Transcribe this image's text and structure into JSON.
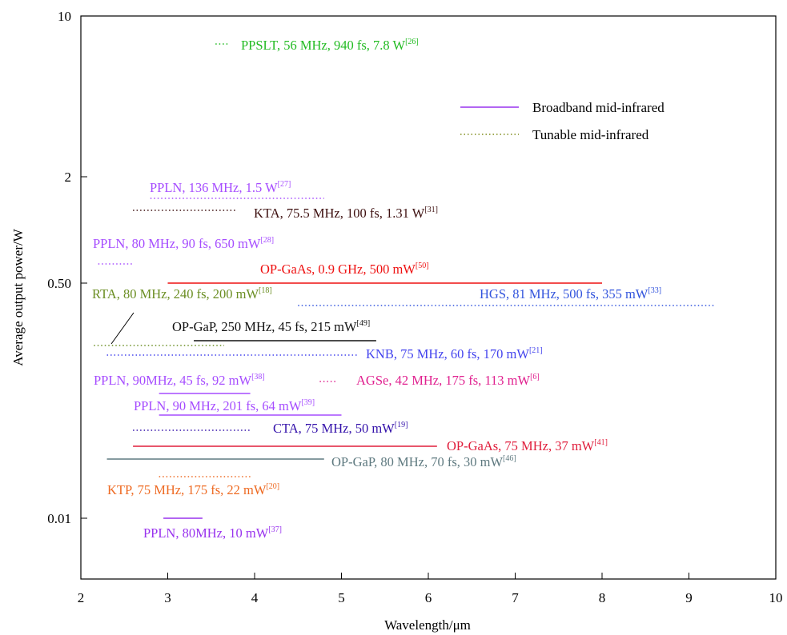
{
  "chart_data": {
    "type": "line",
    "title": "",
    "xlabel": "Wavelength/μm",
    "ylabel": "Average output power/W",
    "xlim": [
      2,
      10
    ],
    "x_ticks": [
      2,
      3,
      4,
      5,
      6,
      7,
      8,
      9,
      10
    ],
    "y_scale": "log",
    "y_ticks": [
      {
        "value": 10,
        "label": "10"
      },
      {
        "value": 2,
        "label": "2"
      },
      {
        "value": 0.5,
        "label": "0.50"
      },
      {
        "value": 0.01,
        "label": "0.01"
      }
    ],
    "grid": false,
    "legend_position": "top-right",
    "legend": [
      {
        "name": "Broadband mid-infrared",
        "style": "solid",
        "color": "#9933ee"
      },
      {
        "name": "Tunable mid-infrared",
        "style": "dotted",
        "color": "#7f8c1a"
      }
    ],
    "series": [
      {
        "text": "PPSLT, 56 MHz, 940 fs, 7.8 W",
        "ref": "[26]",
        "style": "dotted",
        "color": "#22bb22",
        "x_range": [
          3.55,
          3.7
        ],
        "y": 7.8
      },
      {
        "text": "PPLN, 136 MHz, 1.5 W",
        "ref": "[27]",
        "style": "dotted",
        "color": "#a64dff",
        "x_range": [
          2.8,
          4.8
        ],
        "y": 1.5
      },
      {
        "text": "KTA, 75.5 MHz, 100 fs, 1.31 W",
        "ref": "[31]",
        "style": "dotted",
        "color": "#3d0f0f",
        "x_range": [
          2.6,
          3.8
        ],
        "y": 1.31
      },
      {
        "text": "PPLN, 80 MHz, 90 fs, 650 mW",
        "ref": "[28]",
        "style": "dotted",
        "color": "#a64dff",
        "x_range": [
          2.2,
          2.6
        ],
        "y": 0.65
      },
      {
        "text": "OP-GaAs, 0.9 GHz, 500 mW",
        "ref": "[50]",
        "style": "solid",
        "color": "#ee1111",
        "x_range": [
          3.0,
          8.0
        ],
        "y": 0.5
      },
      {
        "text": "RTA, 80 MHz, 240 fs, 200 mW",
        "ref": "[18]",
        "style": "dotted",
        "color": "#6b8e23",
        "x_range": [
          2.15,
          3.65
        ],
        "y": 0.2
      },
      {
        "text": "HGS, 81 MHz, 500 fs, 355 mW",
        "ref": "[33]",
        "style": "dotted",
        "color": "#3355dd",
        "x_range": [
          4.5,
          9.3
        ],
        "y": 0.355
      },
      {
        "text": "OP-GaP, 250 MHz, 45 fs, 215 mW",
        "ref": "[49]",
        "style": "solid",
        "color": "#111111",
        "x_range": [
          3.3,
          5.4
        ],
        "y": 0.215
      },
      {
        "text": "KNB, 75 MHz, 60 fs, 170 mW",
        "ref": "[21]",
        "style": "dotted",
        "color": "#4444ee",
        "x_range": [
          2.3,
          5.2
        ],
        "y": 0.17
      },
      {
        "text": "AGSe, 42 MHz, 175 fs, 113 mW",
        "ref": "[6]",
        "style": "dotted",
        "color": "#e0208f",
        "x_range": [
          4.75,
          4.95
        ],
        "y": 0.113
      },
      {
        "text": "PPLN, 90MHz, 45 fs, 92 mW",
        "ref": "[38]",
        "style": "solid",
        "color": "#a64dff",
        "x_range": [
          2.9,
          3.95
        ],
        "y": 0.092
      },
      {
        "text": "PPLN, 90 MHz, 201 fs, 64 mW",
        "ref": "[39]",
        "style": "solid",
        "color": "#a64dff",
        "x_range": [
          2.9,
          5.0
        ],
        "y": 0.064
      },
      {
        "text": "CTA, 75 MHz, 50 mW",
        "ref": "[19]",
        "style": "dotted",
        "color": "#3311aa",
        "x_range": [
          2.6,
          3.95
        ],
        "y": 0.05
      },
      {
        "text": "OP-GaAs, 75 MHz, 37 mW",
        "ref": "[41]",
        "style": "solid",
        "color": "#e01e3c",
        "x_range": [
          2.6,
          6.1
        ],
        "y": 0.037
      },
      {
        "text": "OP-GaP, 80 MHz, 70 fs, 30 mW",
        "ref": "[46]",
        "style": "solid",
        "color": "#5f7a80",
        "x_range": [
          2.3,
          4.8
        ],
        "y": 0.03
      },
      {
        "text": "KTP, 75 MHz, 175 fs, 22 mW",
        "ref": "[20]",
        "style": "dotted",
        "color": "#ee6a22",
        "x_range": [
          2.9,
          3.95
        ],
        "y": 0.022
      },
      {
        "text": "PPLN, 80MHz, 10 mW",
        "ref": "[37]",
        "style": "solid",
        "color": "#9933ee",
        "x_range": [
          2.95,
          3.4
        ],
        "y": 0.01
      }
    ]
  }
}
